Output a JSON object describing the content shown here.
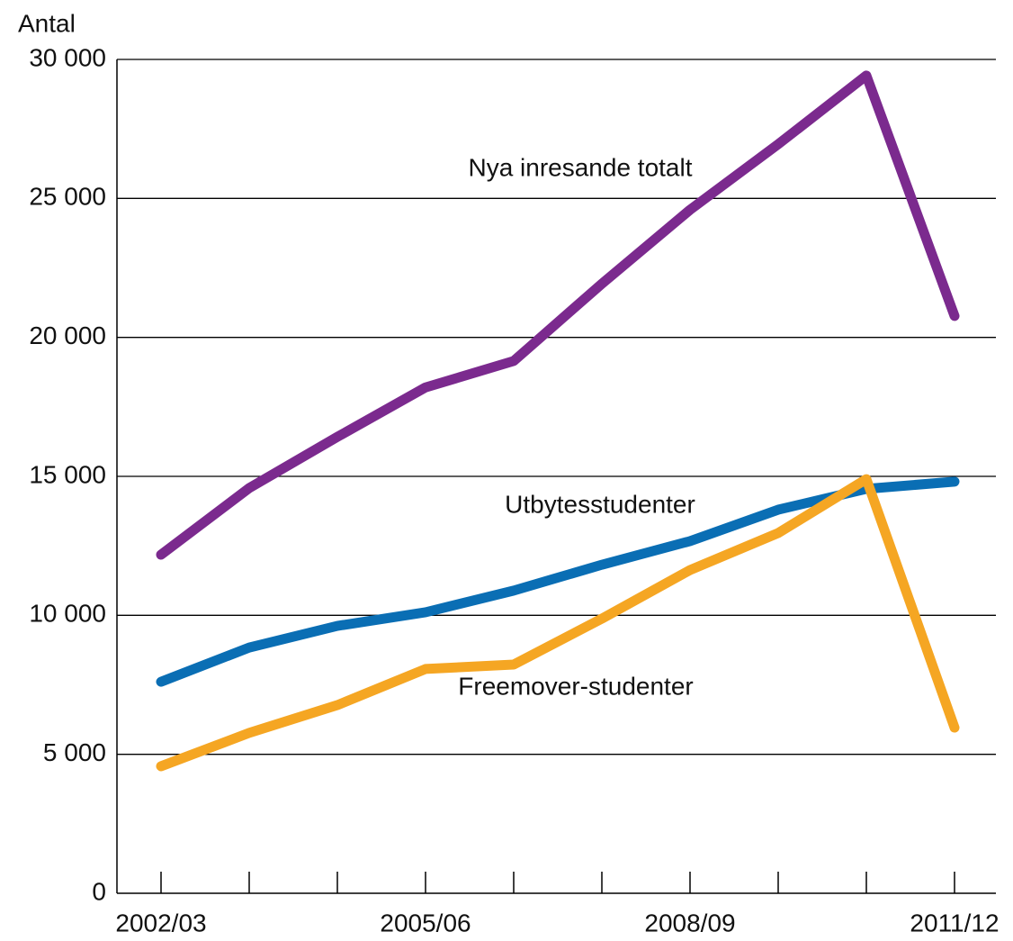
{
  "chart_data": {
    "type": "line",
    "y_label": "Antal",
    "categories": [
      "2002/03",
      null,
      null,
      "2005/06",
      null,
      null,
      "2008/09",
      null,
      null,
      "2011/12"
    ],
    "series": [
      {
        "name": "Nya inresande totalt",
        "color": "#7b2a8e",
        "values": [
          12180,
          14580,
          16420,
          18200,
          19150,
          21930,
          24590,
          26950,
          29420,
          20770
        ]
      },
      {
        "name": "Utbytesstudenter",
        "color": "#0a6eb4",
        "values": [
          7610,
          8840,
          9620,
          10110,
          10890,
          11820,
          12670,
          13800,
          14550,
          14810
        ]
      },
      {
        "name": "Freemover-studenter",
        "color": "#f5a623",
        "values": [
          4570,
          5770,
          6770,
          8070,
          8230,
          9880,
          11630,
          12960,
          14900,
          5960
        ]
      }
    ],
    "ylim": [
      0,
      30000
    ],
    "yticks": [
      0,
      {
        "value": 5000,
        "label": "5 000"
      },
      {
        "value": 10000,
        "label": "10 000"
      },
      {
        "value": 15000,
        "label": "15 000"
      },
      {
        "value": 20000,
        "label": "20 000"
      },
      {
        "value": 25000,
        "label": "25 000"
      },
      {
        "value": 30000,
        "label": "30 000"
      }
    ],
    "grid": true
  }
}
